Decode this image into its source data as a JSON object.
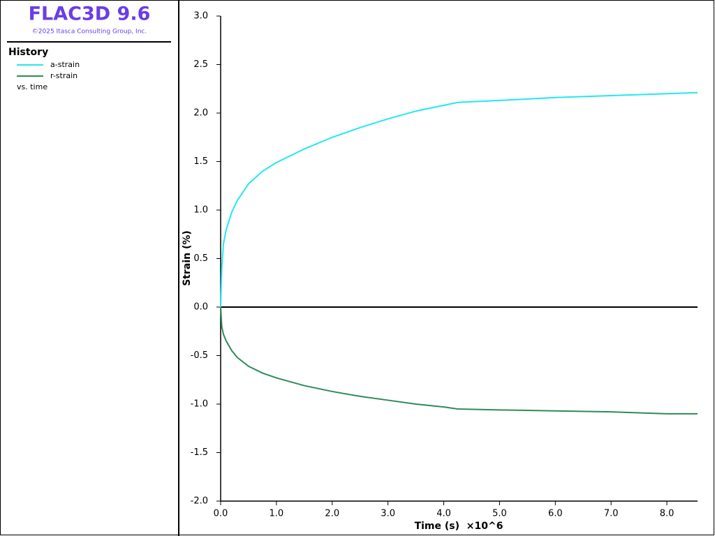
{
  "header": {
    "title": "FLAC3D 9.6",
    "copyright": "©2025 Itasca Consulting Group, Inc."
  },
  "legend": {
    "title": "History",
    "footer": "vs. time"
  },
  "chart_data": {
    "type": "line",
    "xlabel": "Time (s)  ×10^6",
    "ylabel": "Strain (%)",
    "x": [
      0,
      0.02,
      0.05,
      0.1,
      0.2,
      0.3,
      0.5,
      0.75,
      1.0,
      1.5,
      2.0,
      2.5,
      3.0,
      3.5,
      4.0,
      4.25,
      5.0,
      6.0,
      7.0,
      8.0,
      8.55
    ],
    "series": [
      {
        "name": "a-strain",
        "color": "#22e8f0",
        "values": [
          0,
          0.4,
          0.65,
          0.8,
          0.98,
          1.1,
          1.27,
          1.4,
          1.49,
          1.63,
          1.75,
          1.85,
          1.94,
          2.02,
          2.08,
          2.11,
          2.13,
          2.16,
          2.18,
          2.2,
          2.21
        ]
      },
      {
        "name": "r-strain",
        "color": "#2e8b57",
        "values": [
          0,
          -0.2,
          -0.28,
          -0.35,
          -0.45,
          -0.52,
          -0.61,
          -0.68,
          -0.73,
          -0.81,
          -0.87,
          -0.92,
          -0.96,
          -1.0,
          -1.03,
          -1.05,
          -1.06,
          -1.07,
          -1.08,
          -1.1,
          -1.1
        ]
      }
    ],
    "xlim": [
      0,
      8.55
    ],
    "ylim": [
      -2.0,
      3.0
    ],
    "xticks": [
      {
        "value": 0,
        "label": "0.0"
      },
      {
        "value": 1,
        "label": "1.0"
      },
      {
        "value": 2,
        "label": "2.0"
      },
      {
        "value": 3,
        "label": "3.0"
      },
      {
        "value": 4,
        "label": "4.0"
      },
      {
        "value": 5,
        "label": "5.0"
      },
      {
        "value": 6,
        "label": "6.0"
      },
      {
        "value": 7,
        "label": "7.0"
      },
      {
        "value": 8,
        "label": "8.0"
      }
    ],
    "yticks": [
      {
        "value": -2,
        "label": "-2.0"
      },
      {
        "value": -1.5,
        "label": "-1.5"
      },
      {
        "value": -1,
        "label": "-1.0"
      },
      {
        "value": -0.5,
        "label": "-0.5"
      },
      {
        "value": 0,
        "label": "0.0"
      },
      {
        "value": 0.5,
        "label": "0.5"
      },
      {
        "value": 1,
        "label": "1.0"
      },
      {
        "value": 1.5,
        "label": "1.5"
      },
      {
        "value": 2,
        "label": "2.0"
      },
      {
        "value": 2.5,
        "label": "2.5"
      },
      {
        "value": 3,
        "label": "3.0"
      }
    ]
  }
}
